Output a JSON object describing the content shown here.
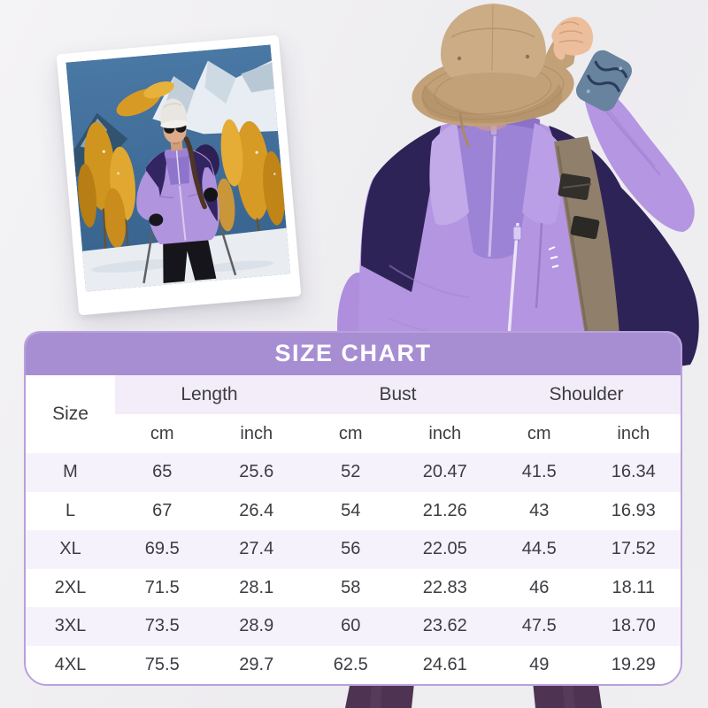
{
  "hero": {
    "polaroid_photo": {
      "description": "Woman skiing in light purple and dark purple jacket, white knit cap and sunglasses, among golden larch trees and snowy mountains",
      "colors": {
        "jacket": "#b194de",
        "jacket_panel": "#322562",
        "trees": "#d79a24",
        "sky": "#41709c"
      }
    },
    "model_photo": {
      "description": "Smiling woman in tan bucket hat holding the brim, wearing light purple 3-in-1 jacket with dark purple shoulders, purple inner fleece and khaki backpack strap",
      "colors": {
        "hat": "#c4a47b",
        "jacket": "#b495e1",
        "shoulder_panel": "#2e2357",
        "inner_fleece": "#9d83d6",
        "strap": "#8f7f6b",
        "cuff": "#67839e",
        "pants": "#4e3452"
      }
    }
  },
  "size_chart": {
    "title": "SIZE CHART",
    "size_column_label": "Size",
    "groups": [
      {
        "label": "Length",
        "units": [
          "cm",
          "inch"
        ]
      },
      {
        "label": "Bust",
        "units": [
          "cm",
          "inch"
        ]
      },
      {
        "label": "Shoulder",
        "units": [
          "cm",
          "inch"
        ]
      }
    ],
    "rows": [
      {
        "size": "M",
        "values": [
          "65",
          "25.6",
          "52",
          "20.47",
          "41.5",
          "16.34"
        ]
      },
      {
        "size": "L",
        "values": [
          "67",
          "26.4",
          "54",
          "21.26",
          "43",
          "16.93"
        ]
      },
      {
        "size": "XL",
        "values": [
          "69.5",
          "27.4",
          "56",
          "22.05",
          "44.5",
          "17.52"
        ]
      },
      {
        "size": "2XL",
        "values": [
          "71.5",
          "28.1",
          "58",
          "22.83",
          "46",
          "18.11"
        ]
      },
      {
        "size": "3XL",
        "values": [
          "73.5",
          "28.9",
          "60",
          "23.62",
          "47.5",
          "18.70"
        ]
      },
      {
        "size": "4XL",
        "values": [
          "75.5",
          "29.7",
          "62.5",
          "24.61",
          "49",
          "19.29"
        ]
      }
    ],
    "colors": {
      "band": "#a78ed3",
      "border": "#b9a0dc",
      "header_bg": "#f2edf9",
      "row_alt_bg": "#f6f2fb",
      "text": "#3c3c42",
      "title_text": "#ffffff"
    }
  },
  "chart_data": {
    "type": "table",
    "title": "SIZE CHART",
    "columns": [
      "Size",
      "Length cm",
      "Length inch",
      "Bust cm",
      "Bust inch",
      "Shoulder cm",
      "Shoulder inch"
    ],
    "rows": [
      [
        "M",
        65,
        25.6,
        52,
        20.47,
        41.5,
        16.34
      ],
      [
        "L",
        67,
        26.4,
        54,
        21.26,
        43,
        16.93
      ],
      [
        "XL",
        69.5,
        27.4,
        56,
        22.05,
        44.5,
        17.52
      ],
      [
        "2XL",
        71.5,
        28.1,
        58,
        22.83,
        46,
        18.11
      ],
      [
        "3XL",
        73.5,
        28.9,
        60,
        23.62,
        47.5,
        18.7
      ],
      [
        "4XL",
        75.5,
        29.7,
        62.5,
        24.61,
        49,
        19.29
      ]
    ]
  }
}
